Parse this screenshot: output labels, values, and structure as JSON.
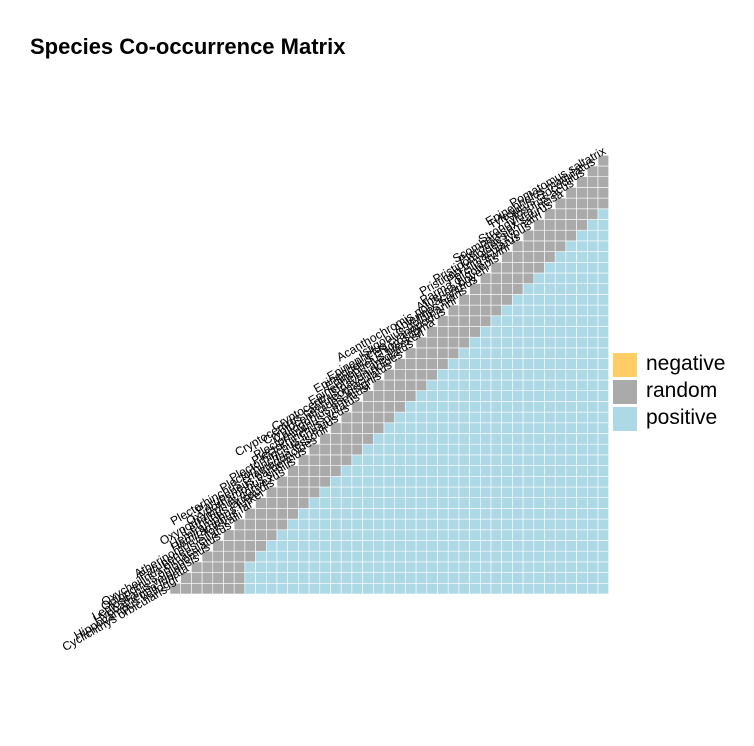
{
  "chart_data": {
    "type": "heatmap",
    "title": "Species Co-occurrence Matrix",
    "species": [
      "Cyclichthys orbicularis",
      "Hippocampus kelloggi",
      "Hypoatherina lunata",
      "Leptoscarus vaigiensis",
      "Oplopomus oplopomus",
      "Oxycheilinus bimaculatus",
      "Parupeneus ciliatus",
      "Atherinomorus forskalii",
      "Hemiramphus far",
      "Hemiramphus lutkei",
      "Lethrinus laticaudis",
      "Oxyporhamphus convexus",
      "Oxyporhamphus similis",
      "Parupeneus barberinus",
      "Plectorhinchus chaetodonoides",
      "Plectorhinchus lessonii",
      "Plectorhinchus lineatus",
      "Plectorhinchus picus",
      "Plectorhinchus vittatus",
      "Callogobius sheltiusi",
      "Cryptocentroides insignis",
      "Cryptocentrus caeruleomaculatus",
      "Cryptocentrus pavoninoides",
      "Epinephelus areolatus",
      "Epinephelus bleekeri",
      "Epinephelus chlorostigma",
      "Epinephelus cyanopodus",
      "Istigobius goldmanni",
      "Ablennes hians",
      "Acanthochromis polyacanthus",
      "Atherina boyeri",
      "Parma oligolepis",
      "Percilia irwini",
      "Pristicon trimaculatus",
      "Pristipomoides typus",
      "Pterocaesio marri",
      "Scomberesox saurus",
      "Strongylura incisa",
      "Tylosurus acus",
      "Tylosurus crocodilus",
      "Epinephelus maculatus",
      "Pomatomus saltatrix"
    ],
    "categories": [
      "negative",
      "random",
      "positive"
    ],
    "colors": {
      "negative": "#FFCC66",
      "random": "#AAAAAA",
      "positive": "#ADD8E6"
    },
    "positive_rows_range": [
      [],
      [],
      [],
      [],
      [],
      [],
      [],
      [],
      [
        0,
        2
      ],
      [
        0,
        3
      ],
      [
        0,
        4
      ],
      [
        0,
        5
      ],
      [
        0,
        6
      ],
      [
        0,
        7
      ],
      [
        0,
        8
      ],
      [
        0,
        9
      ],
      [
        0,
        10
      ],
      [
        0,
        11
      ],
      [
        0,
        12
      ],
      [
        0,
        13
      ],
      [
        0,
        14
      ],
      [
        0,
        15
      ],
      [
        0,
        16
      ],
      [
        0,
        17
      ],
      [
        0,
        18
      ],
      [
        0,
        19
      ],
      [
        0,
        20
      ],
      [
        0,
        21
      ],
      [
        0,
        22
      ],
      [
        0,
        23
      ],
      [
        0,
        24
      ],
      [
        0,
        25
      ],
      [
        0,
        26
      ],
      [
        0,
        27
      ],
      [
        0,
        28
      ],
      [
        0,
        29
      ],
      [
        0,
        30
      ],
      [
        0,
        31
      ],
      [
        0,
        32
      ],
      [
        0,
        33
      ],
      [
        0,
        34
      ],
      [
        0,
        35
      ]
    ],
    "legend": {
      "position": "right",
      "entries": [
        "negative",
        "random",
        "positive"
      ]
    }
  }
}
